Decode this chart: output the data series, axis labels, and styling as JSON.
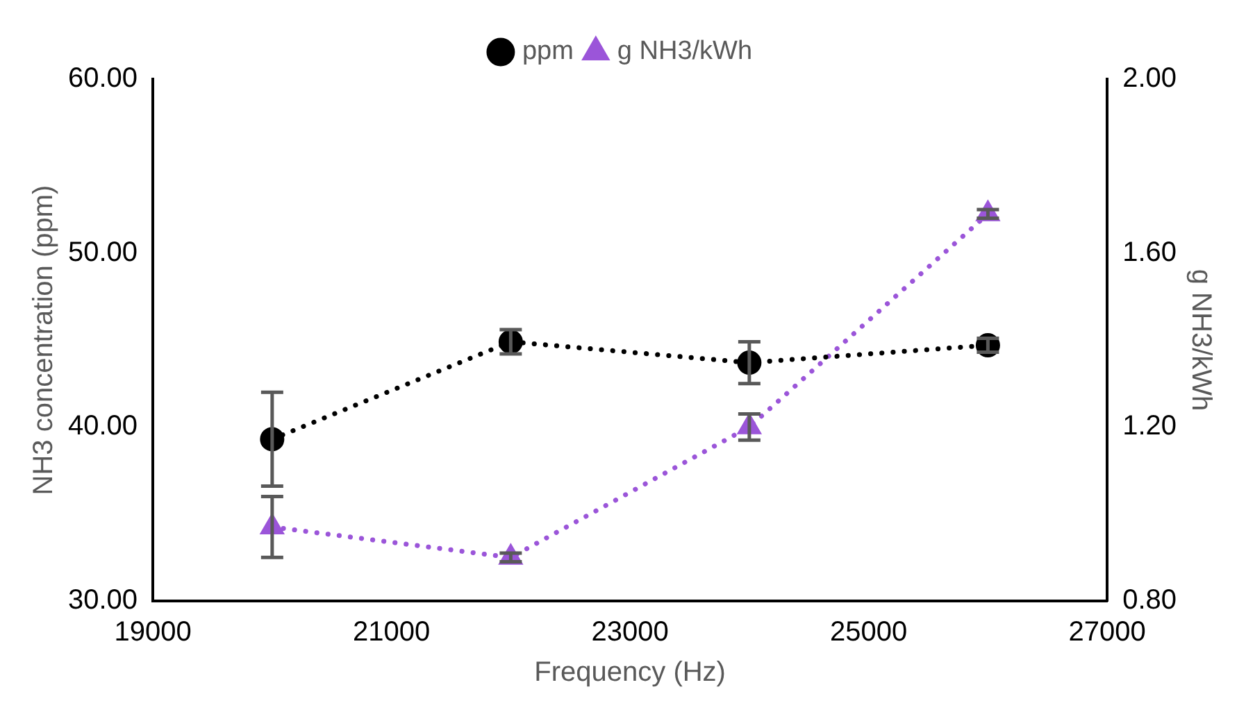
{
  "chart_data": {
    "type": "line",
    "xlabel": "Frequency (Hz)",
    "ylabel": "NH3 concentration (ppm)",
    "y2label": "g NH3/kWh",
    "x": [
      20000,
      22000,
      24000,
      26000
    ],
    "series": [
      {
        "name": "ppm",
        "color": "#000000",
        "values": [
          39.3,
          44.9,
          43.7,
          44.7
        ],
        "errors": [
          2.7,
          0.7,
          1.2,
          0.4
        ],
        "marker": "circle",
        "line_style": "dotted"
      },
      {
        "name": "g NH3/kWh",
        "color": "#9b55d9",
        "values": [
          0.97,
          0.9,
          1.2,
          1.69
        ],
        "errors": [
          0.07,
          0.01,
          0.03,
          0.01
        ],
        "marker": "triangle",
        "line_style": "dotted",
        "axis": "y2"
      }
    ],
    "xlim": [
      19000,
      27000
    ],
    "xticks": [
      19000,
      21000,
      23000,
      25000,
      27000
    ],
    "ylim": [
      30,
      60
    ],
    "yticks": [
      {
        "value": 30,
        "label": "30.00"
      },
      {
        "value": 40,
        "label": "40.00"
      },
      {
        "value": 50,
        "label": "50.00"
      },
      {
        "value": 60,
        "label": "60.00"
      }
    ],
    "y2lim": [
      0.8,
      2
    ],
    "y2ticks": [
      {
        "value": 0.8,
        "label": "0.80"
      },
      {
        "value": 1.2,
        "label": "1.20"
      },
      {
        "value": 1.6,
        "label": "1.60"
      },
      {
        "value": 2,
        "label": "2.00"
      }
    ],
    "grid": false,
    "legend": "top"
  }
}
